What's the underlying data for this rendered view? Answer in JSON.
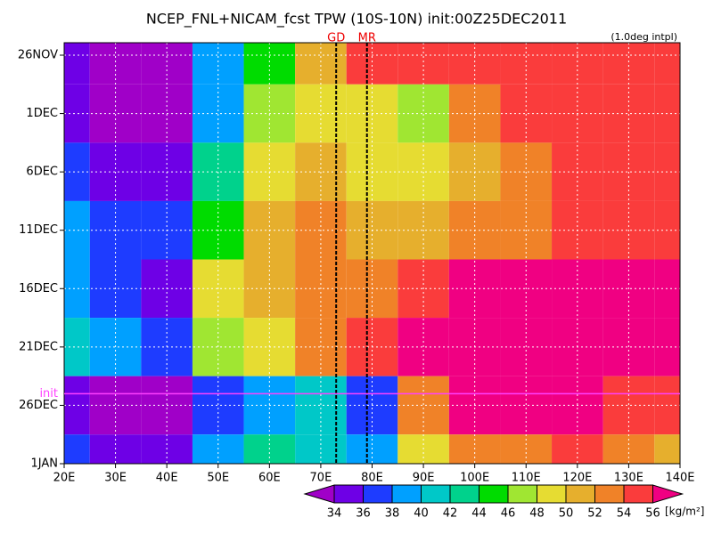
{
  "chart_data": {
    "type": "heatmap",
    "title": "NCEP_FNL+NICAM_fcst TPW (10S-10N) init:00Z25DEC2011",
    "subtitle": "(1.0deg intpl)",
    "x": [
      20,
      30,
      40,
      50,
      60,
      70,
      80,
      90,
      100,
      110,
      120,
      130,
      140
    ],
    "xlim": [
      20,
      140
    ],
    "xticks": [
      {
        "value": 20,
        "label": "20E"
      },
      {
        "value": 30,
        "label": "30E"
      },
      {
        "value": 40,
        "label": "40E"
      },
      {
        "value": 50,
        "label": "50E"
      },
      {
        "value": 60,
        "label": "60E"
      },
      {
        "value": 70,
        "label": "70E"
      },
      {
        "value": 80,
        "label": "80E"
      },
      {
        "value": 90,
        "label": "90E"
      },
      {
        "value": 100,
        "label": "100E"
      },
      {
        "value": 110,
        "label": "110E"
      },
      {
        "value": 120,
        "label": "120E"
      },
      {
        "value": 130,
        "label": "130E"
      },
      {
        "value": 140,
        "label": "140E"
      }
    ],
    "y": [
      "26NOV",
      "1DEC",
      "6DEC",
      "11DEC",
      "16DEC",
      "21DEC",
      "26DEC",
      "1JAN"
    ],
    "values": [
      [
        34,
        32,
        33,
        38,
        44,
        50,
        54,
        55,
        54,
        54,
        55,
        55,
        54
      ],
      [
        34,
        33,
        33,
        38,
        46,
        48,
        49,
        47,
        52,
        54,
        55,
        55,
        55
      ],
      [
        36,
        35,
        34,
        42,
        48,
        50,
        48,
        49,
        51,
        52,
        55,
        55,
        54
      ],
      [
        38,
        37,
        36,
        44,
        50,
        52,
        50,
        51,
        52,
        53,
        54,
        55,
        55
      ],
      [
        38,
        37,
        35,
        48,
        51,
        53,
        53,
        55,
        56,
        56,
        56,
        56,
        56
      ],
      [
        40,
        38,
        36,
        46,
        49,
        52,
        54,
        56,
        57,
        56,
        56,
        56,
        56
      ],
      [
        35,
        33,
        33,
        36,
        38,
        40,
        36,
        52,
        56,
        57,
        56,
        55,
        54
      ],
      [
        36,
        35,
        34,
        38,
        42,
        40,
        38,
        48,
        52,
        53,
        55,
        52,
        50
      ]
    ],
    "grid": true,
    "markers": [
      {
        "label": "GD",
        "lon": 73
      },
      {
        "label": "MR",
        "lon": 79
      }
    ],
    "init_label": "init",
    "colorbar": {
      "levels": [
        34,
        36,
        38,
        40,
        42,
        44,
        46,
        48,
        50,
        52,
        54,
        56
      ],
      "colors": [
        "#a000c8",
        "#6e00e6",
        "#1e3cff",
        "#00a0ff",
        "#00c8c8",
        "#00d28c",
        "#00dc00",
        "#a0e632",
        "#e6dc32",
        "#e6af2d",
        "#f08228",
        "#fa3c3c",
        "#f00082"
      ],
      "unit": "[kg/m²]"
    }
  }
}
